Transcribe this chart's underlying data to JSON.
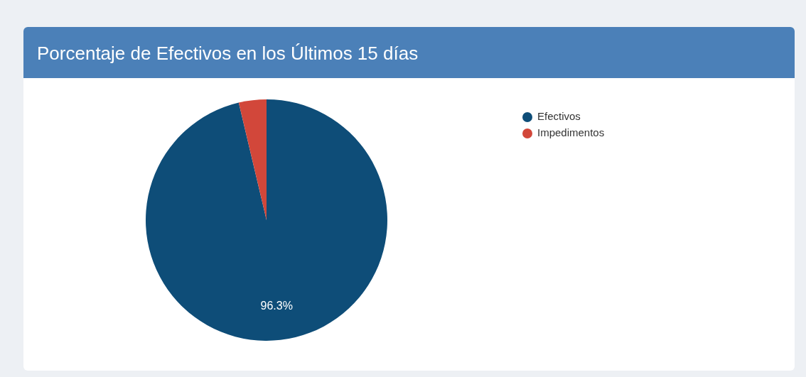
{
  "chart_data": {
    "type": "pie",
    "title": "Porcentaje de Efectivos en los Últimos 15 días",
    "categories": [
      "Efectivos",
      "Impedimentos"
    ],
    "values": [
      96.3,
      3.7
    ],
    "colors": [
      "#0e4d78",
      "#d2473a"
    ],
    "value_labels": [
      "96.3%",
      null
    ],
    "legend": "top right"
  }
}
